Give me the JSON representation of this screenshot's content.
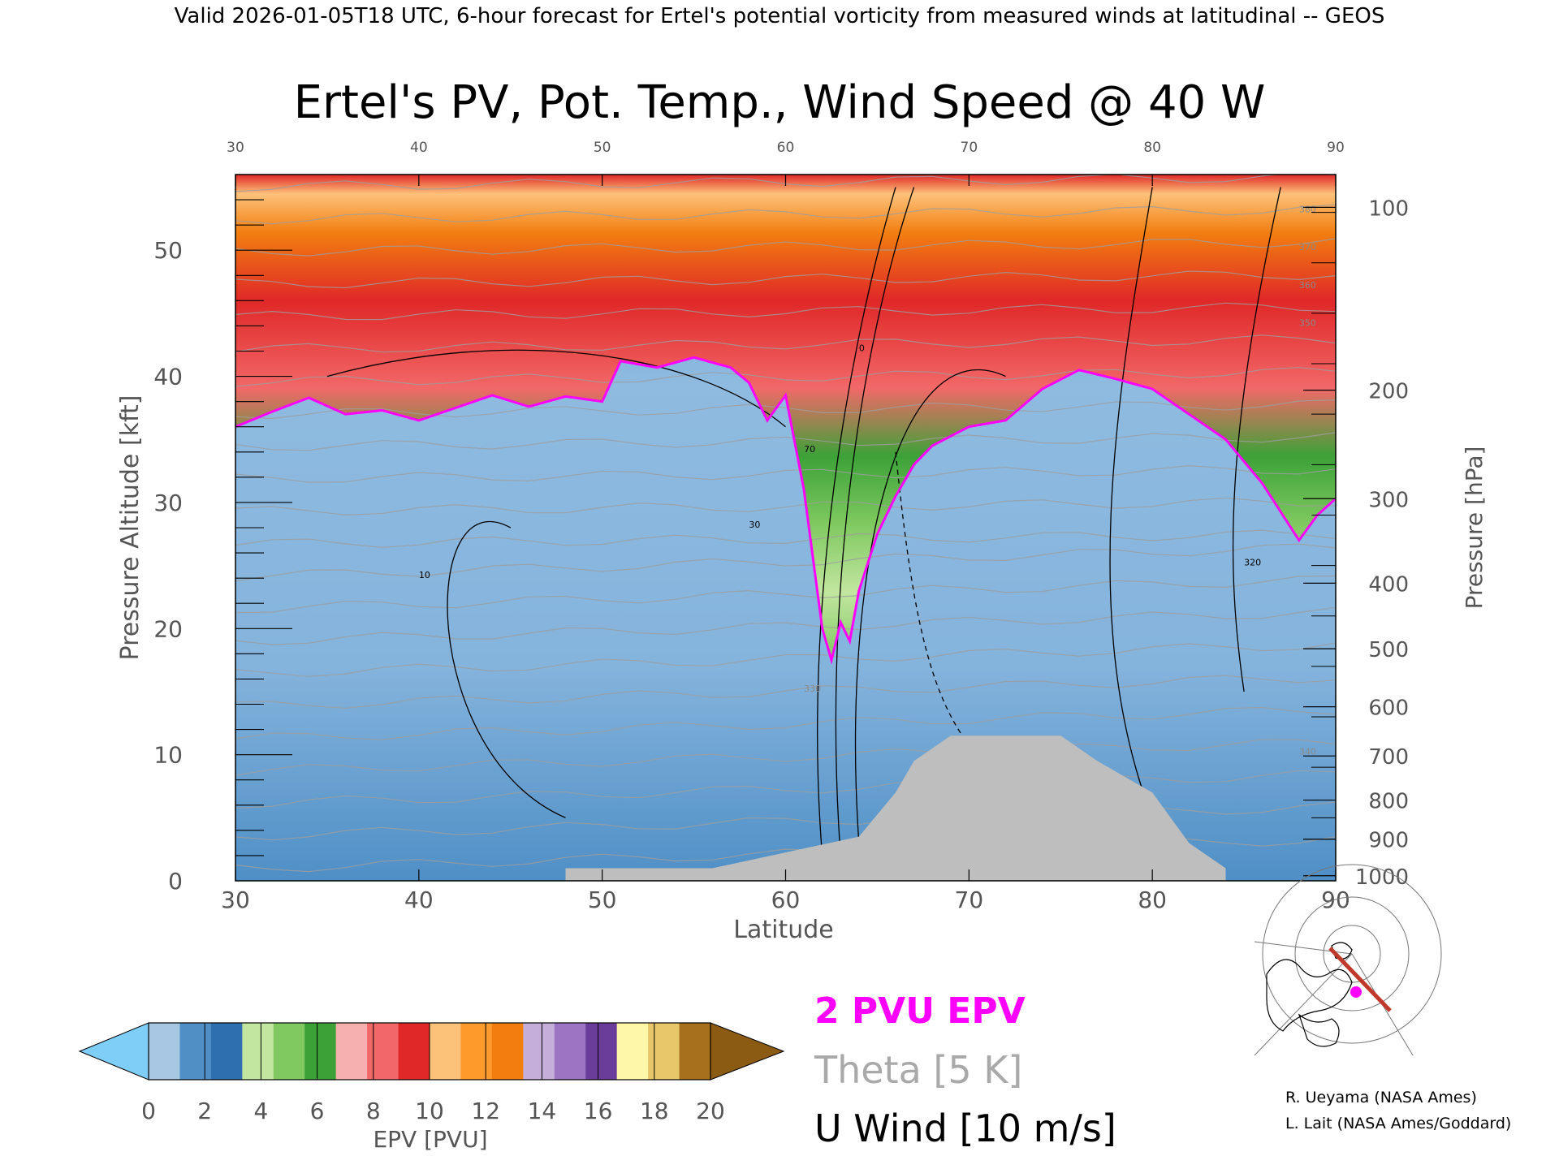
{
  "header": {
    "banner": "Valid 2026-01-05T18 UTC, 6-hour forecast for Ertel's potential vorticity from measured winds at latitudinal -- GEOS",
    "title": "Ertel's PV, Pot. Temp., Wind Speed @ 40 W"
  },
  "chart_data": {
    "type": "heatmap",
    "title": "Ertel's PV, Pot. Temp., Wind Speed @ 40 W",
    "xlabel": "Latitude",
    "ylabel": "Pressure Altitude [kft]",
    "y2label": "Pressure [hPa]",
    "xlim": [
      30,
      90
    ],
    "ylim": [
      0,
      56
    ],
    "x_ticks": [
      30,
      40,
      50,
      60,
      70,
      80,
      90
    ],
    "y_ticks": [
      0,
      10,
      20,
      30,
      40,
      50
    ],
    "pressure_ticks": [
      {
        "label": "100",
        "kft": 53.4
      },
      {
        "label": "200",
        "kft": 38.9
      },
      {
        "label": "300",
        "kft": 30.3
      },
      {
        "label": "400",
        "kft": 23.6
      },
      {
        "label": "500",
        "kft": 18.4
      },
      {
        "label": "600",
        "kft": 13.8
      },
      {
        "label": "700",
        "kft": 9.9
      },
      {
        "label": "800",
        "kft": 6.4
      },
      {
        "label": "900",
        "kft": 3.3
      },
      {
        "label": "1000",
        "kft": 0.4
      }
    ],
    "tropopause_2pvu_kft": [
      [
        30,
        36.0
      ],
      [
        32,
        37.2
      ],
      [
        34,
        38.3
      ],
      [
        36,
        37.0
      ],
      [
        38,
        37.3
      ],
      [
        40,
        36.5
      ],
      [
        42,
        37.5
      ],
      [
        44,
        38.5
      ],
      [
        46,
        37.6
      ],
      [
        48,
        38.4
      ],
      [
        50,
        38.0
      ],
      [
        51,
        41.2
      ],
      [
        53,
        40.7
      ],
      [
        55,
        41.5
      ],
      [
        57,
        40.7
      ],
      [
        58,
        39.5
      ],
      [
        59,
        36.5
      ],
      [
        60,
        38.5
      ],
      [
        61,
        31.0
      ],
      [
        62,
        20.0
      ],
      [
        62.5,
        17.5
      ],
      [
        63,
        20.5
      ],
      [
        63.5,
        19.0
      ],
      [
        64,
        23.0
      ],
      [
        65,
        27.5
      ],
      [
        66,
        30.5
      ],
      [
        67,
        33.0
      ],
      [
        68,
        34.5
      ],
      [
        70,
        36.0
      ],
      [
        72,
        36.5
      ],
      [
        74,
        39.0
      ],
      [
        76,
        40.5
      ],
      [
        78,
        39.8
      ],
      [
        80,
        39.0
      ],
      [
        82,
        37.0
      ],
      [
        84,
        35.0
      ],
      [
        86,
        31.5
      ],
      [
        88,
        27.0
      ],
      [
        89,
        29.0
      ],
      [
        90,
        30.3
      ]
    ],
    "topography_kft": [
      [
        48,
        1.0
      ],
      [
        56,
        1.0
      ],
      [
        64,
        3.5
      ],
      [
        66,
        7.0
      ],
      [
        67,
        9.5
      ],
      [
        69,
        11.5
      ],
      [
        75,
        11.5
      ],
      [
        77,
        9.5
      ],
      [
        80,
        7.0
      ],
      [
        82,
        3.0
      ],
      [
        84,
        1.0
      ]
    ],
    "colorbar": {
      "label": "EPV [PVU]",
      "ticks": [
        "0",
        "2",
        "4",
        "6",
        "8",
        "10",
        "12",
        "14",
        "16",
        "18",
        "20"
      ],
      "colors": [
        "#7fcef8",
        "#a7c7e3",
        "#4f8fc6",
        "#2e6fb0",
        "#c2e6a0",
        "#7fc960",
        "#3ca238",
        "#f6b0b0",
        "#f26868",
        "#e02828",
        "#fdc27a",
        "#fc9a2c",
        "#f27e10",
        "#c6aedb",
        "#9b75c4",
        "#6a3d9a",
        "#fff7a8",
        "#e8c76a",
        "#a7701c",
        "#8b5a13"
      ]
    },
    "legend": [
      {
        "label": "2 PVU EPV",
        "color": "#ff00ff"
      },
      {
        "label": "Theta [5 K]",
        "color": "#a9a9a9"
      },
      {
        "label": "U Wind [10 m/s]",
        "color": "#000000"
      }
    ],
    "annotations": [
      "0",
      "10",
      "30",
      "70",
      "320",
      "330",
      "340",
      "350",
      "360",
      "370",
      "380"
    ]
  },
  "credits": {
    "line1": "R. Ueyama (NASA Ames)",
    "line2": "L. Lait (NASA Ames/Goddard)"
  }
}
